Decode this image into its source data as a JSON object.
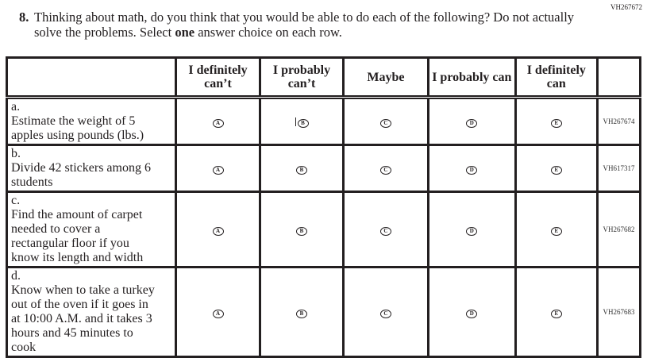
{
  "page_code": "VH267672",
  "question": {
    "number": "8.",
    "text_before": "Thinking about math, do you think that you would be able to do each of the following? Do not actually solve the problems. Select ",
    "emphasis": "one",
    "text_after": " answer choice on each row."
  },
  "columns": [
    "I definitely can’t",
    "I probably can’t",
    "Maybe",
    "I probably can",
    "I definitely can"
  ],
  "bubbles": [
    "A",
    "B",
    "C",
    "D",
    "E"
  ],
  "rows": [
    {
      "letter": "a.",
      "text": "Estimate the weight of 5 apples using pounds (lbs.)",
      "id": "VH267674"
    },
    {
      "letter": "b.",
      "text": "Divide 42 stickers among 6 students",
      "id": "VH617317"
    },
    {
      "letter": "c.",
      "text": "Find the amount of carpet needed to cover a rectangular floor if you know its length and width",
      "id": "VH267682"
    },
    {
      "letter": "d.",
      "text": "Know when to take a turkey out of the oven if it goes in at 10:00 A.M. and it takes 3 hours and 45 minutes to cook",
      "id": "VH267683"
    }
  ]
}
